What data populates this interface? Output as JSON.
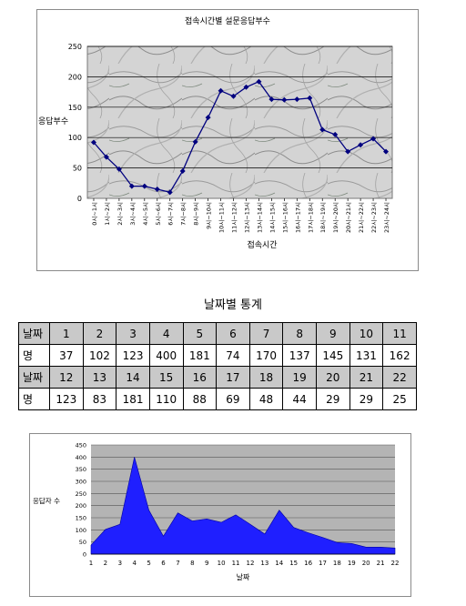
{
  "charts": {
    "hourly": {
      "chart_data": {
        "type": "line",
        "title": "접속시간별 설문응답부수",
        "xlabel": "접속시간",
        "ylabel": "응답부수",
        "ylim": [
          0,
          250
        ],
        "yticks": [
          0,
          50,
          100,
          150,
          200,
          250
        ],
        "grid": true,
        "categories": [
          "0시~1시",
          "1시~2시",
          "2시~3시",
          "3시~4시",
          "4시~5시",
          "5시~6시",
          "6시~7시",
          "7시~8시",
          "8시~9시",
          "9시~10시",
          "10시~11시",
          "11시~12시",
          "12시~13시",
          "13시~14시",
          "14시~15시",
          "15시~16시",
          "16시~17시",
          "17시~18시",
          "18시~19시",
          "19시~20시",
          "20시~21시",
          "21시~22시",
          "22시~23시",
          "23시~24시"
        ],
        "values": [
          92,
          68,
          48,
          20,
          20,
          15,
          10,
          45,
          93,
          133,
          177,
          168,
          183,
          192,
          163,
          162,
          163,
          165,
          113,
          105,
          77,
          88,
          98,
          77
        ],
        "line_color": "#00007f"
      }
    },
    "daily": {
      "chart_data": {
        "type": "area",
        "xlabel": "날짜",
        "ylabel": "응답자 수",
        "ylim": [
          0,
          450
        ],
        "yticks": [
          0,
          50,
          100,
          150,
          200,
          250,
          300,
          350,
          400,
          450
        ],
        "grid": true,
        "categories": [
          "1",
          "2",
          "3",
          "4",
          "5",
          "6",
          "7",
          "8",
          "9",
          "10",
          "11",
          "12",
          "13",
          "14",
          "15",
          "16",
          "17",
          "18",
          "19",
          "20",
          "21",
          "22"
        ],
        "values": [
          37,
          102,
          123,
          400,
          181,
          74,
          170,
          137,
          145,
          131,
          162,
          123,
          83,
          181,
          110,
          88,
          69,
          48,
          44,
          29,
          29,
          25
        ],
        "fill_color": "#1f1fff",
        "plot_bg": "#b4b4b4"
      }
    }
  },
  "stats": {
    "title": "날짜별 통계",
    "rows": [
      {
        "type": "header",
        "label": "날짜",
        "cells": [
          "1",
          "2",
          "3",
          "4",
          "5",
          "6",
          "7",
          "8",
          "9",
          "10",
          "11"
        ]
      },
      {
        "type": "value",
        "label": "명",
        "cells": [
          "37",
          "102",
          "123",
          "400",
          "181",
          "74",
          "170",
          "137",
          "145",
          "131",
          "162"
        ]
      },
      {
        "type": "header",
        "label": "날짜",
        "cells": [
          "12",
          "13",
          "14",
          "15",
          "16",
          "17",
          "18",
          "19",
          "20",
          "21",
          "22"
        ]
      },
      {
        "type": "value",
        "label": "명",
        "cells": [
          "123",
          "83",
          "181",
          "110",
          "88",
          "69",
          "48",
          "44",
          "29",
          "29",
          "25"
        ]
      }
    ]
  }
}
